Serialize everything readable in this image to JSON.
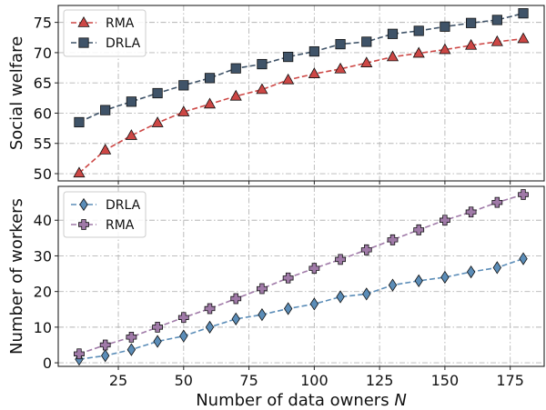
{
  "chart_data": [
    {
      "type": "line",
      "xlabel": "",
      "ylabel": "Social welfare",
      "xlim": [
        2,
        188
      ],
      "ylim": [
        48.8,
        77.8
      ],
      "xticks": [
        25,
        50,
        75,
        100,
        125,
        150,
        175
      ],
      "yticks": [
        50,
        55,
        60,
        65,
        70,
        75
      ],
      "show_xtick_labels": false,
      "grid": true,
      "legend": "top-left",
      "x": [
        10,
        20,
        30,
        40,
        50,
        60,
        70,
        80,
        90,
        100,
        110,
        120,
        130,
        140,
        150,
        160,
        170,
        180
      ],
      "series": [
        {
          "name": "RMA",
          "color": "#cd4745",
          "marker": "triangle-up",
          "values": [
            50.1,
            53.9,
            56.3,
            58.4,
            60.2,
            61.5,
            62.8,
            63.9,
            65.5,
            66.5,
            67.3,
            68.3,
            69.3,
            69.9,
            70.5,
            71.2,
            71.8,
            72.3
          ]
        },
        {
          "name": "DRLA",
          "color": "#3f5368",
          "marker": "square",
          "values": [
            58.5,
            60.5,
            61.9,
            63.3,
            64.6,
            65.8,
            67.4,
            68.1,
            69.3,
            70.2,
            71.4,
            71.8,
            73.1,
            73.6,
            74.3,
            74.9,
            75.4,
            76.5
          ]
        }
      ]
    },
    {
      "type": "line",
      "xlabel": "Number of data owners N",
      "ylabel": "Number of workers",
      "xlim": [
        2,
        188
      ],
      "ylim": [
        -1,
        49.5
      ],
      "xticks": [
        25,
        50,
        75,
        100,
        125,
        150,
        175
      ],
      "yticks": [
        0,
        10,
        20,
        30,
        40
      ],
      "show_xtick_labels": true,
      "grid": true,
      "legend": "top-left",
      "x": [
        10,
        20,
        30,
        40,
        50,
        60,
        70,
        80,
        90,
        100,
        110,
        120,
        130,
        140,
        150,
        160,
        170,
        180
      ],
      "series": [
        {
          "name": "DRLA",
          "color": "#5b8db8",
          "marker": "diamond",
          "values": [
            1,
            2,
            3.7,
            6,
            7.5,
            10,
            12.3,
            13.5,
            15.2,
            16.5,
            18.5,
            19.3,
            21.8,
            23,
            24,
            25.5,
            26.7,
            29.2
          ]
        },
        {
          "name": "RMA",
          "color": "#a07aa8",
          "marker": "plus",
          "values": [
            2.5,
            5,
            7.2,
            10,
            12.7,
            15.2,
            18,
            20.8,
            23.8,
            26.5,
            29,
            31.7,
            34.5,
            37.3,
            40,
            42.3,
            45,
            47.2
          ]
        }
      ]
    }
  ]
}
